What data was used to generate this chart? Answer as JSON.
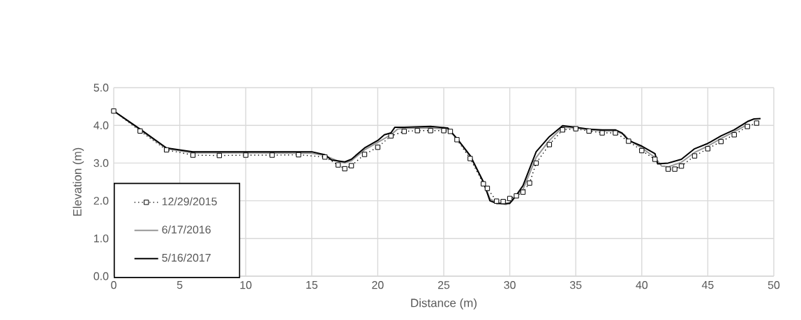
{
  "chart_data": {
    "type": "line",
    "xlabel": "Distance (m)",
    "ylabel": "Elevation (m)",
    "xlim": [
      0,
      50
    ],
    "xticks": [
      0,
      5,
      10,
      15,
      20,
      25,
      30,
      35,
      40,
      45,
      50
    ],
    "ylim": [
      0,
      5
    ],
    "yticks": [
      {
        "value": 0,
        "label": "0.0"
      },
      {
        "value": 1,
        "label": "1.0"
      },
      {
        "value": 2,
        "label": "2.0"
      },
      {
        "value": 3,
        "label": "3.0"
      },
      {
        "value": 4,
        "label": "4.0"
      },
      {
        "value": 5,
        "label": "5.0"
      }
    ],
    "grid": true,
    "legend": "bottom left",
    "series": [
      {
        "name": "12/29/2015",
        "color": "#000000",
        "line_style": "dotted",
        "marker": "square",
        "x": [
          0,
          2,
          4,
          6,
          8,
          10,
          12,
          14,
          16,
          17,
          17.5,
          18,
          19,
          20,
          21,
          22,
          23,
          24,
          25,
          25.5,
          26,
          27,
          28,
          28.3,
          29,
          29.5,
          30,
          30.5,
          31,
          31.5,
          32,
          33,
          34,
          35,
          36,
          37,
          38,
          39,
          40,
          41,
          42,
          42.5,
          43,
          44,
          45,
          46,
          47,
          48,
          48.7
        ],
        "values": [
          4.38,
          3.85,
          3.35,
          3.21,
          3.2,
          3.21,
          3.21,
          3.22,
          3.16,
          2.95,
          2.85,
          2.93,
          3.23,
          3.42,
          3.72,
          3.84,
          3.86,
          3.86,
          3.86,
          3.84,
          3.62,
          3.12,
          2.45,
          2.33,
          1.99,
          1.98,
          2.06,
          2.13,
          2.23,
          2.47,
          3.0,
          3.49,
          3.88,
          3.91,
          3.85,
          3.8,
          3.8,
          3.58,
          3.33,
          3.1,
          2.84,
          2.84,
          2.92,
          3.19,
          3.38,
          3.57,
          3.75,
          3.97,
          4.06
        ]
      },
      {
        "name": "6/17/2016",
        "color": "#969696",
        "line_style": "solid",
        "marker": "none",
        "x": [
          0,
          2,
          4,
          6,
          10,
          15,
          16,
          17,
          17.5,
          18,
          19,
          20,
          21,
          21.5,
          22,
          24,
          25.3,
          26,
          27,
          28,
          28.5,
          29,
          29.7,
          30.2,
          30.5,
          31,
          32,
          33,
          34,
          35,
          36,
          37,
          38,
          38.7,
          39,
          40,
          41,
          41.5,
          42,
          43,
          44,
          45,
          46,
          47,
          48
        ],
        "values": [
          4.38,
          3.88,
          3.38,
          3.27,
          3.27,
          3.26,
          3.2,
          3.05,
          3.0,
          3.06,
          3.35,
          3.55,
          3.75,
          3.9,
          3.92,
          3.93,
          3.9,
          3.65,
          3.18,
          2.5,
          2.05,
          1.95,
          1.9,
          2.0,
          2.15,
          2.3,
          3.15,
          3.6,
          3.95,
          3.93,
          3.88,
          3.85,
          3.85,
          3.75,
          3.62,
          3.4,
          3.15,
          2.92,
          2.9,
          3.02,
          3.28,
          3.45,
          3.65,
          3.83,
          4.02
        ]
      },
      {
        "name": "5/16/2017",
        "color": "#000000",
        "line_style": "solid",
        "marker": "none",
        "x": [
          0,
          2,
          4,
          6,
          10,
          15,
          16,
          16.5,
          17.5,
          18,
          19,
          20,
          20.5,
          21,
          21.3,
          22,
          24,
          25.3,
          26,
          27,
          28,
          28.5,
          29,
          30,
          30.5,
          31,
          32,
          33,
          34,
          35,
          36,
          37,
          38,
          38.5,
          39,
          40,
          41,
          41.2,
          42,
          43,
          44,
          45,
          46,
          47,
          48,
          48.5,
          49
        ],
        "values": [
          4.38,
          3.9,
          3.4,
          3.3,
          3.3,
          3.3,
          3.22,
          3.08,
          3.03,
          3.1,
          3.4,
          3.6,
          3.75,
          3.8,
          3.95,
          3.95,
          3.97,
          3.93,
          3.65,
          3.2,
          2.5,
          2.0,
          1.93,
          1.93,
          2.15,
          2.4,
          3.3,
          3.7,
          3.99,
          3.95,
          3.9,
          3.88,
          3.88,
          3.8,
          3.6,
          3.45,
          3.25,
          2.98,
          3.0,
          3.1,
          3.38,
          3.52,
          3.72,
          3.88,
          4.1,
          4.17,
          4.18
        ]
      }
    ]
  }
}
